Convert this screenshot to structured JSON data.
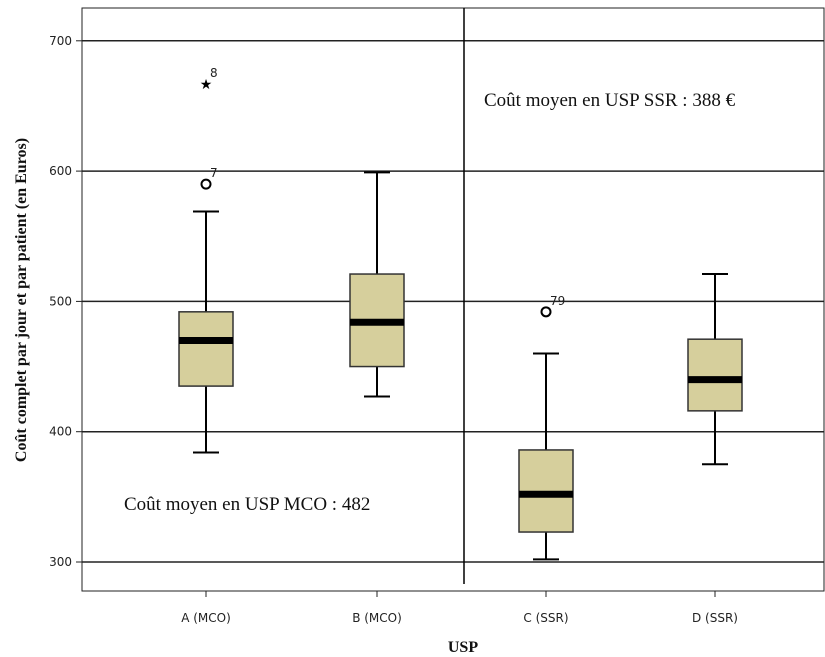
{
  "chart_data": {
    "type": "box",
    "title": "",
    "xlabel": "USP",
    "ylabel": "Coût complet par jour et par patient (en Euros)",
    "ylim": [
      280,
      725
    ],
    "yticks": [
      300,
      400,
      500,
      600,
      700
    ],
    "grid": true,
    "box_color": "#d6cf9c",
    "categories": [
      "A (MCO)",
      "B (MCO)",
      "C (SSR)",
      "D (SSR)"
    ],
    "boxes": [
      {
        "category": "A (MCO)",
        "whisker_low": 384,
        "q1": 435,
        "median": 470,
        "q3": 492,
        "whisker_high": 569,
        "outliers": [
          {
            "value": 590,
            "label": "7",
            "marker": "circle"
          },
          {
            "value": 667,
            "label": "8",
            "marker": "star"
          }
        ]
      },
      {
        "category": "B (MCO)",
        "whisker_low": 427,
        "q1": 450,
        "median": 484,
        "q3": 521,
        "whisker_high": 599,
        "outliers": []
      },
      {
        "category": "C (SSR)",
        "whisker_low": 302,
        "q1": 323,
        "median": 352,
        "q3": 386,
        "whisker_high": 460,
        "outliers": [
          {
            "value": 492,
            "label": "79",
            "marker": "circle"
          }
        ]
      },
      {
        "category": "D (SSR)",
        "whisker_low": 375,
        "q1": 416,
        "median": 440,
        "q3": 471,
        "whisker_high": 521,
        "outliers": []
      }
    ],
    "annotations": [
      {
        "text": "Coût moyen en USP MCO : 482",
        "group": "MCO"
      },
      {
        "text": "Coût moyen en USP SSR : 388 €",
        "group": "SSR"
      }
    ]
  }
}
